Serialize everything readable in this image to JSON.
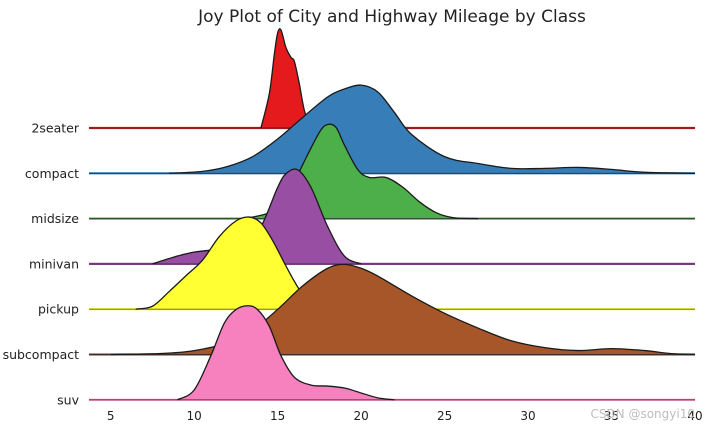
{
  "chart_data": {
    "type": "area",
    "title": "Joy Plot of City and Highway Mileage by Class",
    "xlabel": "",
    "ylabel": "",
    "xlim": [
      3.7,
      40
    ],
    "xticks": [
      "5",
      "10",
      "15",
      "20",
      "25",
      "30",
      "35",
      "40"
    ],
    "grid": false,
    "series": [
      {
        "name": "2seater",
        "color": "#e41a1c",
        "x": [
          14.0,
          14.5,
          14.8,
          15.0,
          15.2,
          15.5,
          15.8,
          16.0,
          16.3,
          16.6,
          17.0
        ],
        "y": [
          0.0,
          0.35,
          0.75,
          0.97,
          1.0,
          0.82,
          0.72,
          0.68,
          0.45,
          0.18,
          0.0
        ]
      },
      {
        "name": "compact",
        "color": "#377eb8",
        "x": [
          8.5,
          10.5,
          12.0,
          13.5,
          15.0,
          16.5,
          18.0,
          19.0,
          20.0,
          21.0,
          22.0,
          23.0,
          25.0,
          27.0,
          29.0,
          31.0,
          33.0,
          35.0,
          37.0,
          40.0
        ],
        "y": [
          0.0,
          0.02,
          0.07,
          0.17,
          0.35,
          0.57,
          0.78,
          0.86,
          0.9,
          0.83,
          0.62,
          0.4,
          0.17,
          0.1,
          0.05,
          0.05,
          0.06,
          0.04,
          0.01,
          0.0
        ]
      },
      {
        "name": "midsize",
        "color": "#4daf4a",
        "x": [
          13.0,
          14.5,
          15.5,
          16.5,
          17.5,
          18.0,
          18.5,
          19.0,
          19.8,
          20.5,
          21.5,
          22.5,
          23.5,
          24.5,
          25.5,
          27.0
        ],
        "y": [
          0.0,
          0.06,
          0.2,
          0.55,
          0.88,
          0.96,
          0.93,
          0.75,
          0.5,
          0.42,
          0.42,
          0.32,
          0.17,
          0.06,
          0.01,
          0.0
        ]
      },
      {
        "name": "minivan",
        "color": "#984ea3",
        "x": [
          7.5,
          9.0,
          10.0,
          11.0,
          12.0,
          13.0,
          14.0,
          15.0,
          15.5,
          16.2,
          17.0,
          18.0,
          19.0,
          20.0
        ],
        "y": [
          0.0,
          0.08,
          0.12,
          0.14,
          0.15,
          0.19,
          0.38,
          0.78,
          0.92,
          0.96,
          0.78,
          0.38,
          0.08,
          0.0
        ]
      },
      {
        "name": "pickup",
        "color": "#ffff33",
        "x": [
          6.5,
          7.5,
          8.5,
          9.5,
          10.5,
          11.5,
          12.5,
          13.3,
          14.0,
          14.7,
          15.5,
          16.3,
          17.2
        ],
        "y": [
          0.0,
          0.03,
          0.18,
          0.34,
          0.5,
          0.74,
          0.9,
          0.94,
          0.88,
          0.7,
          0.44,
          0.2,
          0.0
        ]
      },
      {
        "name": "subcompact",
        "color": "#a65628",
        "x": [
          5.0,
          8.0,
          10.0,
          12.0,
          13.5,
          15.0,
          16.5,
          18.0,
          19.0,
          20.0,
          21.0,
          23.0,
          25.0,
          27.0,
          29.0,
          31.0,
          33.0,
          35.0,
          37.0,
          38.5,
          40.0
        ],
        "y": [
          0.0,
          0.01,
          0.04,
          0.12,
          0.25,
          0.46,
          0.7,
          0.88,
          0.92,
          0.88,
          0.8,
          0.6,
          0.42,
          0.27,
          0.14,
          0.07,
          0.04,
          0.06,
          0.04,
          0.01,
          0.0
        ]
      },
      {
        "name": "suv",
        "color": "#f781bf",
        "x": [
          9.0,
          10.0,
          11.0,
          11.8,
          12.5,
          13.2,
          13.8,
          14.5,
          15.2,
          16.0,
          17.0,
          18.0,
          19.0,
          20.0,
          21.0,
          22.0
        ],
        "y": [
          0.0,
          0.1,
          0.45,
          0.78,
          0.92,
          0.96,
          0.92,
          0.75,
          0.45,
          0.23,
          0.15,
          0.14,
          0.12,
          0.07,
          0.02,
          0.0
        ]
      }
    ]
  },
  "watermark": "CSDN @songyi10"
}
